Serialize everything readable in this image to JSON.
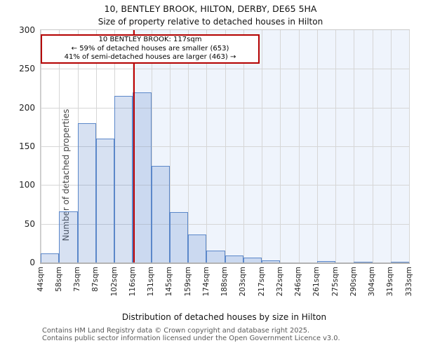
{
  "chart_data": {
    "type": "bar",
    "title": "10, BENTLEY BROOK, HILTON, DERBY, DE65 5HA",
    "subtitle": "Size of property relative to detached houses in Hilton",
    "categories": [
      "44sqm",
      "58sqm",
      "73sqm",
      "87sqm",
      "102sqm",
      "116sqm",
      "131sqm",
      "145sqm",
      "159sqm",
      "174sqm",
      "188sqm",
      "203sqm",
      "217sqm",
      "232sqm",
      "246sqm",
      "261sqm",
      "275sqm",
      "290sqm",
      "304sqm",
      "319sqm",
      "333sqm"
    ],
    "values": [
      12,
      66,
      180,
      160,
      215,
      220,
      125,
      65,
      36,
      15,
      9,
      6,
      3,
      0,
      0,
      2,
      0,
      1,
      0,
      1
    ],
    "xlabel": "Distribution of detached houses by size in Hilton",
    "ylabel": "Number of detached properties",
    "ylim": [
      0,
      300
    ],
    "yticks": [
      0,
      50,
      100,
      150,
      200,
      250,
      300
    ],
    "grid": true,
    "legend": "none",
    "marker": {
      "value": 117,
      "label": "117sqm"
    },
    "annotation": {
      "line1": "10 BENTLEY BROOK: 117sqm",
      "line2": "← 59% of detached houses are smaller (653)",
      "line3": "41% of semi-detached houses are larger (463) →"
    }
  },
  "footer": {
    "line1": "Contains HM Land Registry data © Crown copyright and database right 2025.",
    "line2": "Contains public sector information licensed under the Open Government Licence v3.0."
  },
  "colors": {
    "bar_fill": "rgba(100,140,205,0.26)",
    "bar_border": "#5b87c9",
    "marker_line": "#c00000",
    "annotation_border": "#b40000",
    "shade_fill": "#eff4fc",
    "grid_line": "#d6d6d6",
    "footer_text": "#595959"
  }
}
